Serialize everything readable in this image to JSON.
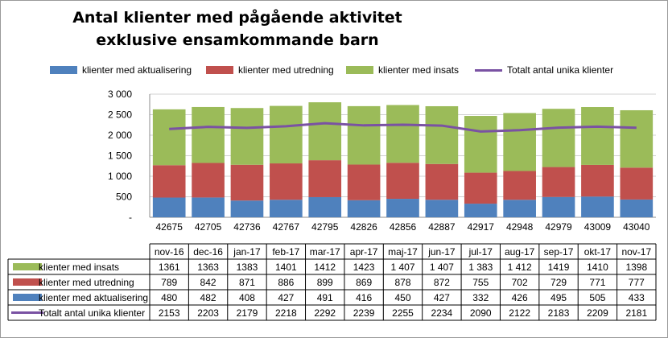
{
  "chart_data": {
    "type": "bar",
    "stacked": true,
    "title": "Antal klienter med pågående aktivitet exklusive ensamkommande barn",
    "x_tick_labels": [
      "42675",
      "42705",
      "42736",
      "42767",
      "42795",
      "42826",
      "42856",
      "42887",
      "42917",
      "42948",
      "42979",
      "43009",
      "43040"
    ],
    "categories": [
      "nov-16",
      "dec-16",
      "jan-17",
      "feb-17",
      "mar-17",
      "apr-17",
      "maj-17",
      "jun-17",
      "jul-17",
      "aug-17",
      "sep-17",
      "okt-17",
      "nov-17"
    ],
    "y_tick_labels": [
      "-",
      "500",
      "1 000",
      "1 500",
      "2 000",
      "2 500",
      "3 000"
    ],
    "ylim": [
      0,
      3000
    ],
    "legend_position": "top",
    "series": [
      {
        "name": "klienter med aktualisering",
        "kind": "bar",
        "color": "#4f81bd",
        "values": [
          480,
          482,
          408,
          427,
          491,
          416,
          450,
          427,
          332,
          426,
          495,
          505,
          433
        ],
        "labels": [
          "480",
          "482",
          "408",
          "427",
          "491",
          "416",
          "450",
          "427",
          "332",
          "426",
          "495",
          "505",
          "433"
        ]
      },
      {
        "name": "klienter med utredning",
        "kind": "bar",
        "color": "#c0504d",
        "values": [
          789,
          842,
          871,
          886,
          899,
          869,
          878,
          872,
          755,
          702,
          729,
          771,
          777
        ],
        "labels": [
          "789",
          "842",
          "871",
          "886",
          "899",
          "869",
          "878",
          "872",
          "755",
          "702",
          "729",
          "771",
          "777"
        ]
      },
      {
        "name": "klienter med insats",
        "kind": "bar",
        "color": "#9bbb59",
        "values": [
          1361,
          1363,
          1383,
          1401,
          1412,
          1423,
          1407,
          1407,
          1383,
          1412,
          1419,
          1410,
          1398
        ],
        "labels": [
          "1361",
          "1363",
          "1383",
          "1401",
          "1412",
          "1423",
          "1 407",
          "1 407",
          "1 383",
          "1 412",
          "1419",
          "1410",
          "1398"
        ]
      },
      {
        "name": "Totalt antal unika klienter",
        "kind": "line",
        "color": "#7a52a3",
        "values": [
          2153,
          2203,
          2179,
          2218,
          2292,
          2239,
          2255,
          2234,
          2090,
          2122,
          2183,
          2209,
          2181
        ],
        "labels": [
          "2153",
          "2203",
          "2179",
          "2218",
          "2292",
          "2239",
          "2255",
          "2234",
          "2090",
          "2122",
          "2183",
          "2209",
          "2181"
        ]
      }
    ],
    "table_row_order": [
      2,
      1,
      0,
      3
    ]
  }
}
